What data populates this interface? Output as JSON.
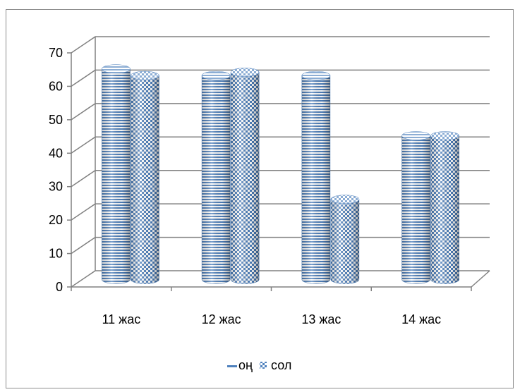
{
  "chart_data": {
    "type": "bar",
    "style": "3d-cylinder",
    "title": "",
    "xlabel": "",
    "ylabel": "",
    "categories": [
      "11 жас",
      "12 жас",
      "13 жас",
      "14 жас"
    ],
    "series": [
      {
        "name": "оң",
        "values": [
          63,
          61,
          61,
          43
        ],
        "pattern": "horizontal-stripes",
        "color": "#4f81bd"
      },
      {
        "name": "сол",
        "values": [
          61,
          62,
          24,
          43
        ],
        "pattern": "checkerboard",
        "color": "#4f81bd"
      }
    ],
    "ylim": [
      0,
      70
    ],
    "yticks": [
      0,
      10,
      20,
      30,
      40,
      50,
      60,
      70
    ],
    "grid": true,
    "legend_position": "bottom"
  }
}
